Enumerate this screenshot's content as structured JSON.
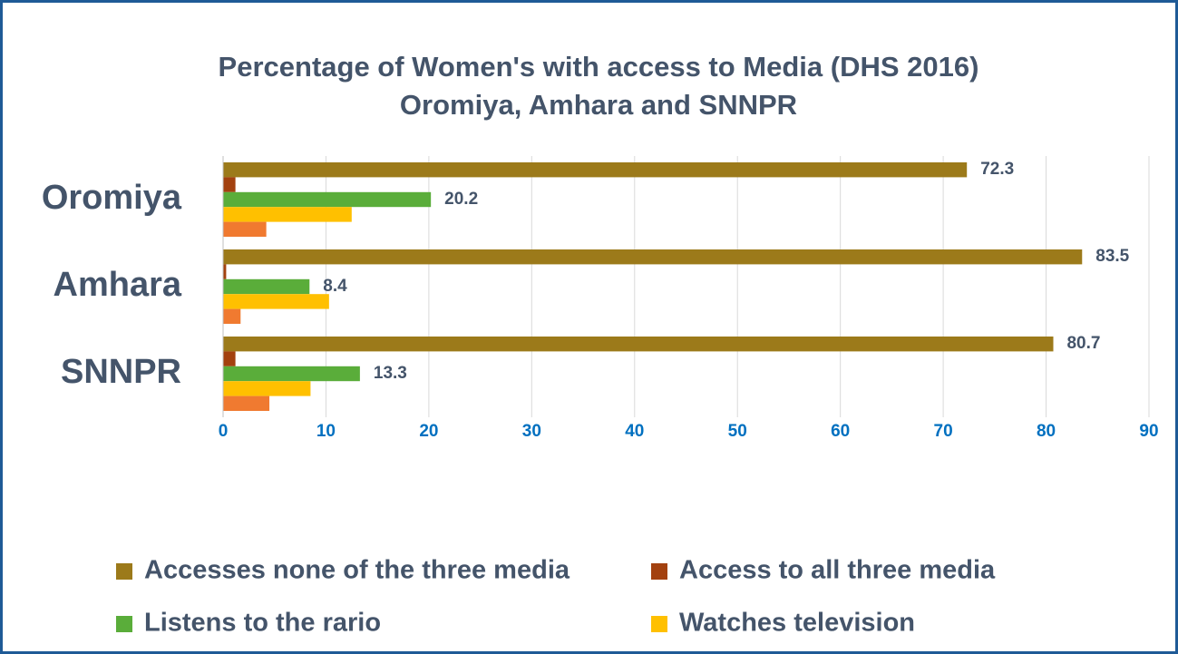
{
  "chart_data": {
    "type": "hbar",
    "title": "Percentage of Women's with access to Media (DHS 2016)",
    "subtitle": "Oromiya, Amhara and SNNPR",
    "categories": [
      "Oromiya",
      "Amhara",
      "SNNPR"
    ],
    "series": [
      {
        "name": "Accesses none of the three media",
        "color": "#9c7a1a",
        "values": [
          72.3,
          83.5,
          80.7
        ],
        "data_labels": true
      },
      {
        "name": "Access to all three media",
        "color": "#a3410f",
        "values": [
          1.2,
          0.3,
          1.2
        ],
        "data_labels": false
      },
      {
        "name": "Listens to the rario",
        "color": "#5aad3a",
        "values": [
          20.2,
          8.4,
          13.3
        ],
        "data_labels": true
      },
      {
        "name": "Watches television",
        "color": "#ffc000",
        "values": [
          12.5,
          10.3,
          8.5
        ],
        "data_labels": false
      },
      {
        "color": "#f07a30",
        "values": [
          4.2,
          1.7,
          4.5
        ],
        "data_labels": false
      }
    ],
    "xlim": [
      0,
      90
    ],
    "xticks": [
      0,
      10,
      20,
      30,
      40,
      50,
      60,
      70,
      80,
      90
    ],
    "grid": true
  }
}
